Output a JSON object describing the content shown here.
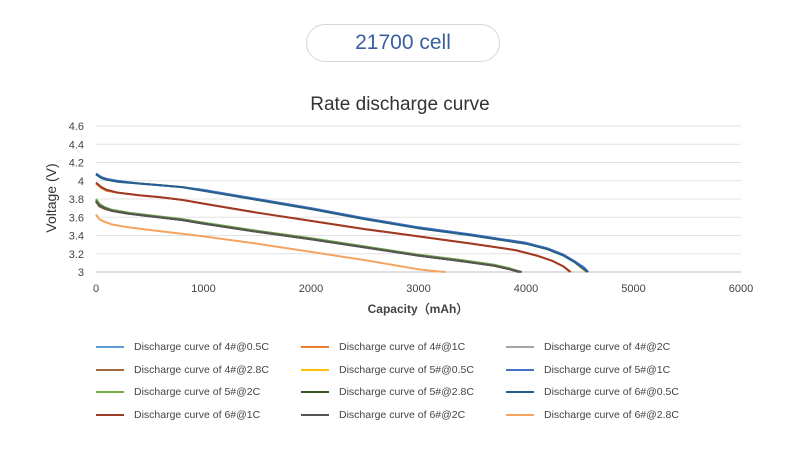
{
  "header": {
    "badge_text": "21700 cell"
  },
  "chart_data": {
    "type": "line",
    "title": "Rate discharge curve",
    "xlabel": "Capacity（mAh）",
    "ylabel": "Voltage (V)",
    "xlim": [
      0,
      6000
    ],
    "ylim": [
      3,
      4.6
    ],
    "x_ticks": [
      "0",
      "1000",
      "2000",
      "3000",
      "4000",
      "5000",
      "6000"
    ],
    "y_ticks": [
      "3",
      "3.2",
      "3.4",
      "3.6",
      "3.8",
      "4",
      "4.2",
      "4.4",
      "4.6"
    ],
    "grid": "horizontal",
    "legend_position": "bottom",
    "series": [
      {
        "name": "Discharge curve of 4#@0.5C",
        "color": "#5b9bd5",
        "x": [
          0,
          50,
          100,
          200,
          400,
          600,
          800,
          1000,
          1500,
          2000,
          2500,
          3000,
          3500,
          4000,
          4200,
          4350,
          4450,
          4530,
          4570
        ],
        "y": [
          4.07,
          4.03,
          4.01,
          3.99,
          3.97,
          3.95,
          3.93,
          3.89,
          3.79,
          3.69,
          3.58,
          3.48,
          3.4,
          3.31,
          3.25,
          3.18,
          3.11,
          3.04,
          3.0
        ]
      },
      {
        "name": "Discharge curve of 4#@1C",
        "color": "#ed7d31",
        "x": [
          0,
          50,
          100,
          200,
          400,
          600,
          800,
          1000,
          1500,
          2000,
          2500,
          3000,
          3500,
          3900,
          4100,
          4250,
          4350,
          4420
        ],
        "y": [
          3.97,
          3.92,
          3.89,
          3.87,
          3.84,
          3.82,
          3.79,
          3.75,
          3.65,
          3.56,
          3.47,
          3.39,
          3.31,
          3.24,
          3.18,
          3.12,
          3.06,
          3.0
        ]
      },
      {
        "name": "Discharge curve of 4#@2C",
        "color": "#a5a5a5",
        "x": [
          0,
          30,
          80,
          150,
          300,
          500,
          800,
          1000,
          1500,
          2000,
          2500,
          3000,
          3400,
          3700,
          3850,
          3950
        ],
        "y": [
          3.79,
          3.74,
          3.71,
          3.68,
          3.65,
          3.62,
          3.58,
          3.54,
          3.45,
          3.37,
          3.28,
          3.19,
          3.13,
          3.08,
          3.04,
          3.0
        ]
      },
      {
        "name": "Discharge curve of 4#@2.8C",
        "color": "#9e6a3a",
        "x": [
          0,
          30,
          80,
          150,
          300,
          500,
          800,
          1000,
          1500,
          2000,
          2500,
          3000,
          3400,
          3700,
          3850,
          3930
        ],
        "y": [
          3.77,
          3.72,
          3.69,
          3.67,
          3.64,
          3.61,
          3.57,
          3.53,
          3.44,
          3.36,
          3.27,
          3.18,
          3.12,
          3.07,
          3.03,
          3.0
        ]
      },
      {
        "name": "Discharge curve of 5#@0.5C",
        "color": "#ffc000",
        "x": [
          0,
          50,
          100,
          200,
          400,
          600,
          800,
          1000,
          1500,
          2000,
          2500,
          3000,
          3500,
          4000,
          4200,
          4350,
          4450,
          4520,
          4560
        ],
        "y": [
          4.07,
          4.03,
          4.01,
          3.99,
          3.97,
          3.95,
          3.93,
          3.89,
          3.79,
          3.69,
          3.58,
          3.48,
          3.4,
          3.31,
          3.25,
          3.18,
          3.11,
          3.04,
          3.0
        ]
      },
      {
        "name": "Discharge curve of 5#@1C",
        "color": "#4472c4",
        "x": [
          0,
          50,
          100,
          200,
          400,
          600,
          800,
          1000,
          1500,
          2000,
          2500,
          3000,
          3500,
          4000,
          4200,
          4350,
          4450,
          4540,
          4580
        ],
        "y": [
          4.08,
          4.04,
          4.02,
          4.0,
          3.97,
          3.95,
          3.93,
          3.9,
          3.8,
          3.7,
          3.59,
          3.49,
          3.41,
          3.32,
          3.26,
          3.19,
          3.12,
          3.05,
          3.0
        ]
      },
      {
        "name": "Discharge curve of 5#@2C",
        "color": "#70ad47",
        "x": [
          0,
          30,
          80,
          150,
          300,
          500,
          800,
          1000,
          1500,
          2000,
          2500,
          3000,
          3400,
          3700,
          3850,
          3950
        ],
        "y": [
          3.8,
          3.75,
          3.71,
          3.68,
          3.65,
          3.62,
          3.58,
          3.54,
          3.45,
          3.37,
          3.28,
          3.19,
          3.13,
          3.08,
          3.04,
          3.0
        ]
      },
      {
        "name": "Discharge curve of 5#@2.8C",
        "color": "#375623",
        "x": [
          0,
          30,
          80,
          150,
          300,
          500,
          800,
          1000,
          1500,
          2000,
          2500,
          3000,
          3400,
          3700,
          3850,
          3940
        ],
        "y": [
          3.78,
          3.73,
          3.7,
          3.67,
          3.64,
          3.61,
          3.57,
          3.53,
          3.44,
          3.36,
          3.27,
          3.18,
          3.12,
          3.07,
          3.03,
          3.0
        ]
      },
      {
        "name": "Discharge curve of 6#@0.5C",
        "color": "#255e91",
        "x": [
          0,
          50,
          100,
          200,
          400,
          600,
          800,
          1000,
          1500,
          2000,
          2500,
          3000,
          3500,
          4000,
          4200,
          4350,
          4450,
          4530,
          4570
        ],
        "y": [
          4.07,
          4.03,
          4.01,
          3.99,
          3.97,
          3.95,
          3.93,
          3.89,
          3.79,
          3.69,
          3.58,
          3.48,
          3.4,
          3.31,
          3.25,
          3.18,
          3.11,
          3.04,
          3.0
        ]
      },
      {
        "name": "Discharge curve of 6#@1C",
        "color": "#9e3a26",
        "x": [
          0,
          50,
          100,
          200,
          400,
          600,
          800,
          1000,
          1500,
          2000,
          2500,
          3000,
          3500,
          3900,
          4100,
          4250,
          4350,
          4410
        ],
        "y": [
          3.98,
          3.93,
          3.9,
          3.87,
          3.84,
          3.82,
          3.79,
          3.75,
          3.65,
          3.56,
          3.47,
          3.39,
          3.31,
          3.24,
          3.18,
          3.12,
          3.06,
          3.0
        ]
      },
      {
        "name": "Discharge curve of 6#@2C",
        "color": "#555555",
        "x": [
          0,
          30,
          80,
          150,
          300,
          500,
          800,
          1000,
          1500,
          2000,
          2500,
          3000,
          3400,
          3700,
          3850,
          3960
        ],
        "y": [
          3.78,
          3.73,
          3.7,
          3.67,
          3.64,
          3.61,
          3.57,
          3.53,
          3.44,
          3.36,
          3.27,
          3.18,
          3.12,
          3.07,
          3.03,
          3.0
        ]
      },
      {
        "name": "Discharge curve of 6#@2.8C",
        "color": "#f4a460",
        "x": [
          0,
          30,
          80,
          150,
          300,
          500,
          800,
          1000,
          1500,
          2000,
          2500,
          2800,
          3000,
          3150,
          3250
        ],
        "y": [
          3.63,
          3.58,
          3.55,
          3.52,
          3.49,
          3.46,
          3.42,
          3.39,
          3.31,
          3.22,
          3.13,
          3.07,
          3.03,
          3.01,
          3.0
        ]
      }
    ]
  }
}
